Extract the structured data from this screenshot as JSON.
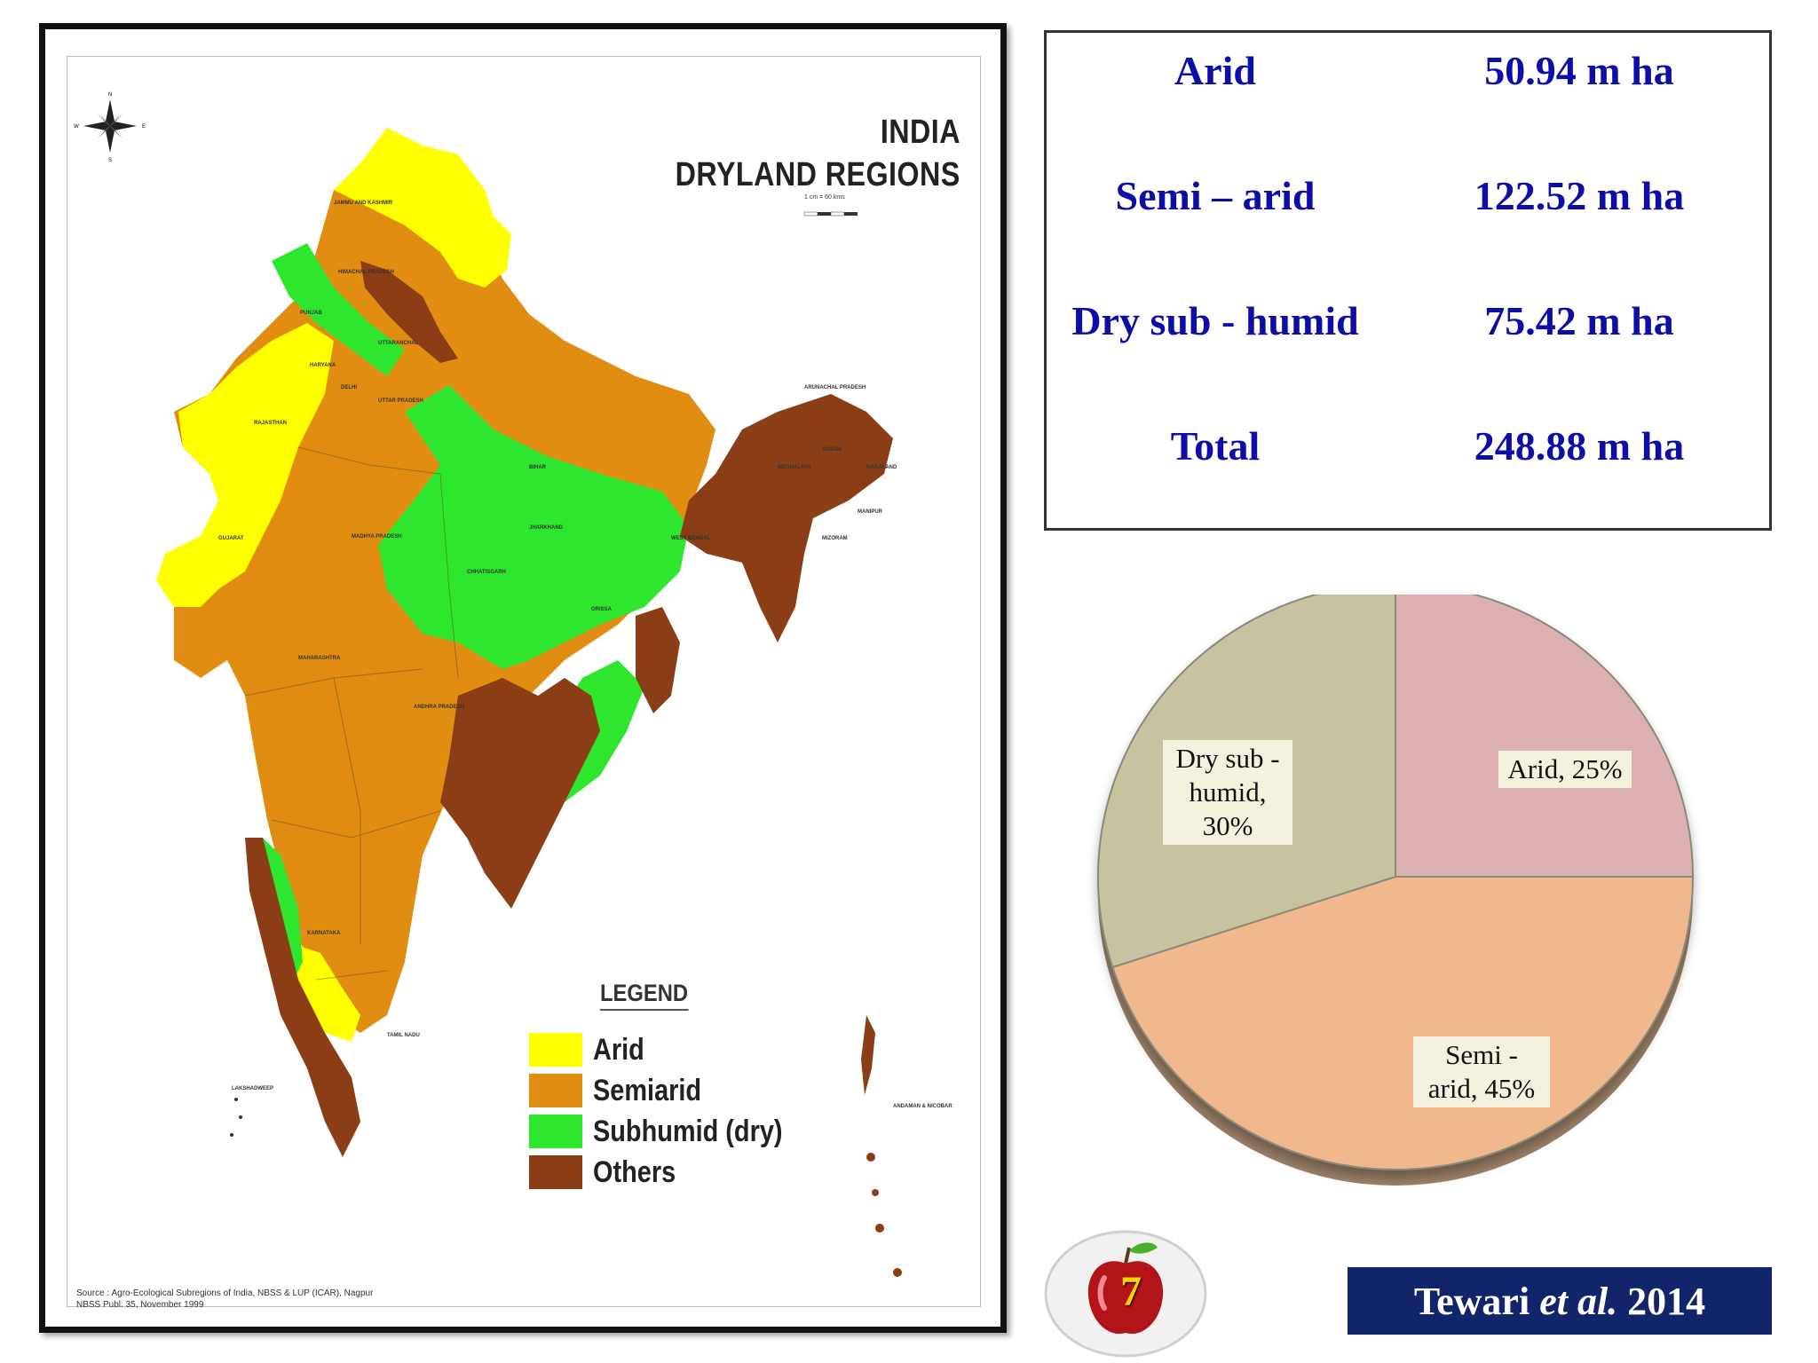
{
  "map": {
    "title_line1": "INDIA",
    "title_line2": "DRYLAND REGIONS",
    "scale_text": "1 cm = 60 kms",
    "legend": {
      "title": "LEGEND",
      "items": [
        {
          "label": "Arid",
          "color": "#ffff00"
        },
        {
          "label": "Semiarid",
          "color": "#e08d12"
        },
        {
          "label": "Subhumid (dry)",
          "color": "#2ee62e"
        },
        {
          "label": "Others",
          "color": "#8b3d16"
        }
      ]
    },
    "source_line1": "Source : Agro-Ecological Subregions of India, NBSS & LUP (ICAR), Nagpur",
    "source_line2": "NBSS Publ. 35, November 1999",
    "state_labels": [
      "JAMMU AND KASHMIR",
      "HIMACHAL PRADESH",
      "PUNJAB",
      "UTTARANCHAL",
      "HARYANA",
      "DELHI",
      "RAJASTHAN",
      "UTTAR PRADESH",
      "BIHAR",
      "ARUNACHAL PRADESH",
      "ASSAM",
      "MEGHALAYA",
      "NAGALAND",
      "MANIPUR",
      "MIZORAM",
      "GUJARAT",
      "MADHYA PRADESH",
      "JHARKHAND",
      "WEST BENGAL",
      "CHHATISGARH",
      "ORISSA",
      "MAHARASHTRA",
      "ANDHRA PRADESH",
      "KARNATAKA",
      "TAMIL NADU",
      "LAKSHADWEEP",
      "ANDAMAN & NICOBAR"
    ]
  },
  "stats": [
    {
      "name": "Arid",
      "value": "50.94 m ha"
    },
    {
      "name": "Semi – arid",
      "value": "122.52 m ha"
    },
    {
      "name": "Dry sub - humid",
      "value": "75.42 m ha"
    },
    {
      "name": "Total",
      "value": "248.88 m ha"
    }
  ],
  "chart_data": {
    "type": "pie",
    "title": "",
    "categories": [
      "Arid",
      "Semi - arid",
      "Dry sub - humid"
    ],
    "values": [
      25,
      45,
      30
    ],
    "colors": [
      "#dcb0b0",
      "#f0b88c",
      "#c7c3a0"
    ],
    "labels": [
      "Arid, 25%",
      "Semi - arid, 45%",
      "Dry sub - humid, 30%"
    ],
    "legend": "none"
  },
  "footer": {
    "slide_number": "7",
    "citation_author": "Tewari",
    "citation_etal": "et al.",
    "citation_year": "2014",
    "citation_bg": "#12246a"
  }
}
